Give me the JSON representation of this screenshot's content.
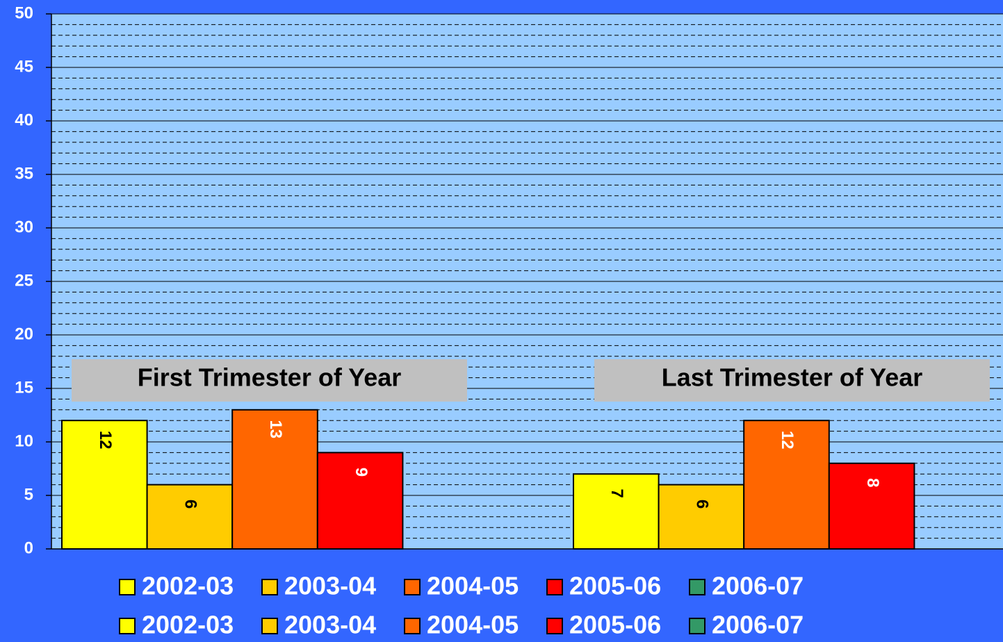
{
  "chart_data": [
    {
      "type": "bar",
      "categories": [
        "First Trimester of Year"
      ],
      "series": [
        {
          "name": "2002-03",
          "color": "#ffff00",
          "values": [
            12
          ]
        },
        {
          "name": "2003-04",
          "color": "#ffcc00",
          "values": [
            6
          ]
        },
        {
          "name": "2004-05",
          "color": "#ff6600",
          "values": [
            13
          ]
        },
        {
          "name": "2005-06",
          "color": "#ff0000",
          "values": [
            9
          ]
        },
        {
          "name": "2006-07",
          "color": "#339966",
          "values": [
            null
          ]
        }
      ],
      "ylim": [
        0,
        50
      ],
      "yticks": [
        0,
        5,
        10,
        15,
        20,
        25,
        30,
        35,
        40,
        45,
        50
      ],
      "grid": true,
      "minor_grid": true
    },
    {
      "type": "bar",
      "categories": [
        "Last Trimester of Year"
      ],
      "series": [
        {
          "name": "2002-03",
          "color": "#ffff00",
          "values": [
            7
          ]
        },
        {
          "name": "2003-04",
          "color": "#ffcc00",
          "values": [
            6
          ]
        },
        {
          "name": "2004-05",
          "color": "#ff6600",
          "values": [
            12
          ]
        },
        {
          "name": "2005-06",
          "color": "#ff0000",
          "values": [
            8
          ]
        },
        {
          "name": "2006-07",
          "color": "#339966",
          "values": [
            null
          ]
        }
      ],
      "ylim": [
        0,
        50
      ],
      "yticks": [
        0,
        5,
        10,
        15,
        20,
        25,
        30,
        35,
        40,
        45,
        50
      ]
    }
  ]
}
